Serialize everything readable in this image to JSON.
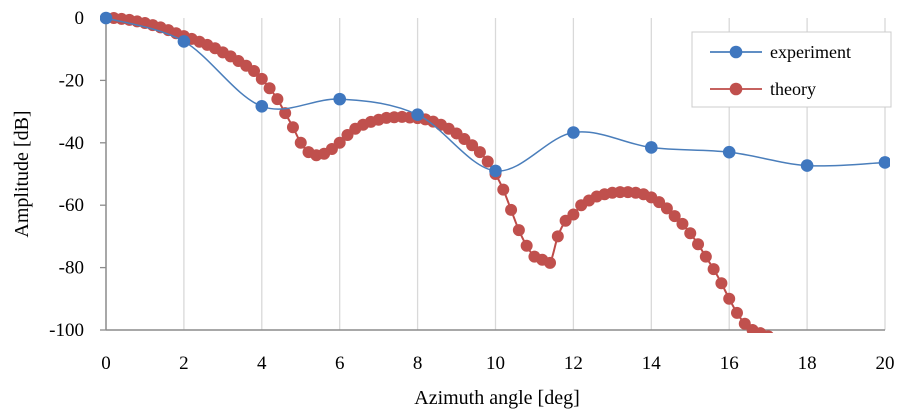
{
  "chart_data": {
    "type": "line",
    "title": "",
    "xlabel": "Azimuth angle [deg]",
    "ylabel": "Amplitude [dB]",
    "xlim": [
      0,
      20
    ],
    "ylim": [
      -100,
      0
    ],
    "xticks": [
      "0",
      "2",
      "4",
      "6",
      "8",
      "10",
      "12",
      "14",
      "16",
      "18",
      "20"
    ],
    "yticks": [
      "0",
      "-20",
      "-40",
      "-60",
      "-80",
      "-100"
    ],
    "grid": "vertical",
    "legend_position": "top-right",
    "series": [
      {
        "name": "experiment",
        "color": "#4a7ebb",
        "marker": "#3f77bf",
        "x": [
          0,
          2,
          4,
          6,
          8,
          10,
          12,
          14,
          16,
          18,
          20
        ],
        "y": [
          0,
          -7.5,
          -28.3,
          -26,
          -31,
          -49,
          -36.7,
          -41.5,
          -43,
          -47.3,
          -46.3
        ]
      },
      {
        "name": "theory",
        "color": "#be4b48",
        "marker": "#c0504d",
        "x": [
          0,
          0.2,
          0.4,
          0.6,
          0.8,
          1.0,
          1.2,
          1.4,
          1.6,
          1.8,
          2.0,
          2.2,
          2.4,
          2.6,
          2.8,
          3.0,
          3.2,
          3.4,
          3.6,
          3.8,
          4.0,
          4.2,
          4.4,
          4.6,
          4.8,
          5.0,
          5.2,
          5.4,
          5.6,
          5.8,
          6.0,
          6.2,
          6.4,
          6.6,
          6.8,
          7.0,
          7.2,
          7.4,
          7.6,
          7.8,
          8.0,
          8.2,
          8.4,
          8.6,
          8.8,
          9.0,
          9.2,
          9.4,
          9.6,
          9.8,
          10.0,
          10.2,
          10.4,
          10.6,
          10.8,
          11.0,
          11.2,
          11.4,
          11.6,
          11.8,
          12.0,
          12.2,
          12.4,
          12.6,
          12.8,
          13.0,
          13.2,
          13.4,
          13.6,
          13.8,
          14.0,
          14.2,
          14.4,
          14.6,
          14.8,
          15.0,
          15.2,
          15.4,
          15.6,
          15.8,
          16.0,
          16.2,
          16.4,
          16.6,
          16.8,
          17.0,
          17.2,
          17.4
        ],
        "y": [
          0,
          0,
          -0.3,
          -0.6,
          -1.1,
          -1.6,
          -2.3,
          -3.0,
          -3.9,
          -4.9,
          -5.8,
          -6.7,
          -7.6,
          -8.6,
          -9.7,
          -11.0,
          -12.3,
          -13.8,
          -15.3,
          -17.0,
          -19.5,
          -22.5,
          -26.0,
          -30.5,
          -35.0,
          -40.0,
          -43.0,
          -44.0,
          -43.5,
          -42.0,
          -40.0,
          -37.5,
          -35.5,
          -34.2,
          -33.3,
          -32.6,
          -32.0,
          -31.8,
          -31.7,
          -31.9,
          -32.1,
          -32.5,
          -33.2,
          -34.2,
          -35.5,
          -37.0,
          -38.8,
          -40.8,
          -43.0,
          -46.0,
          -50.0,
          -55.0,
          -61.5,
          -68.0,
          -73.0,
          -76.5,
          -77.5,
          -78.5,
          -70.0,
          -65.0,
          -63.0,
          -60.0,
          -58.5,
          -57.2,
          -56.5,
          -56.0,
          -55.8,
          -55.8,
          -56.0,
          -56.5,
          -57.5,
          -59.0,
          -61.0,
          -63.5,
          -66.0,
          -69.0,
          -72.5,
          -76.5,
          -80.5,
          -85.0,
          -90.0,
          -94.5,
          -98.0,
          -100.0,
          -101.0,
          -102.0,
          -103.0,
          -104.0
        ]
      }
    ]
  }
}
